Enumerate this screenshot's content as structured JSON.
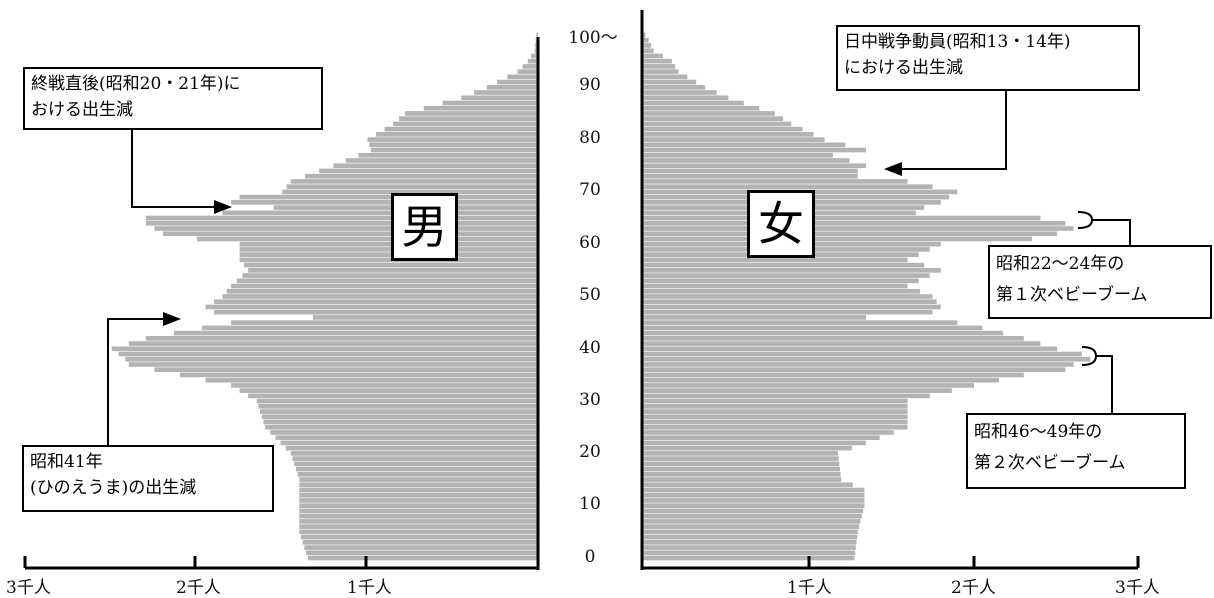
{
  "chart_data": {
    "type": "bar",
    "title": "",
    "age_tick_labels": [
      "0",
      "10",
      "20",
      "30",
      "40",
      "50",
      "60",
      "70",
      "80",
      "90",
      "100〜"
    ],
    "male_axis_labels": [
      "3千人",
      "2千人",
      "1千人"
    ],
    "female_axis_labels": [
      "1千人",
      "2千人",
      "3千人"
    ],
    "x_range_thousand_persons": [
      0,
      3
    ],
    "male_label": "男",
    "female_label": "女",
    "male_key_points": [
      [
        0,
        1.35
      ],
      [
        5,
        1.4
      ],
      [
        10,
        1.4
      ],
      [
        13,
        1.4
      ],
      [
        15,
        1.4
      ],
      [
        20,
        1.45
      ],
      [
        25,
        1.6
      ],
      [
        30,
        1.65
      ],
      [
        33,
        1.8
      ],
      [
        35,
        2.1
      ],
      [
        37,
        2.4
      ],
      [
        38,
        2.42
      ],
      [
        40,
        2.5
      ],
      [
        42,
        2.3
      ],
      [
        44,
        1.97
      ],
      [
        45,
        1.8
      ],
      [
        46,
        1.32
      ],
      [
        47,
        1.9
      ],
      [
        48,
        1.95
      ],
      [
        50,
        1.85
      ],
      [
        52,
        1.8
      ],
      [
        55,
        1.7
      ],
      [
        57,
        1.75
      ],
      [
        60,
        1.75
      ],
      [
        61,
        2.0
      ],
      [
        62,
        2.2
      ],
      [
        63,
        2.25
      ],
      [
        64,
        2.3
      ],
      [
        65,
        2.3
      ],
      [
        66,
        1.85
      ],
      [
        67,
        1.55
      ],
      [
        68,
        1.8
      ],
      [
        69,
        1.75
      ],
      [
        70,
        1.5
      ],
      [
        72,
        1.45
      ],
      [
        75,
        1.2
      ],
      [
        78,
        0.98
      ],
      [
        80,
        1.0
      ],
      [
        83,
        0.85
      ],
      [
        85,
        0.78
      ],
      [
        88,
        0.45
      ],
      [
        90,
        0.3
      ],
      [
        93,
        0.12
      ],
      [
        95,
        0.06
      ],
      [
        97,
        0.02
      ],
      [
        100,
        0.01
      ]
    ],
    "female_key_points": [
      [
        0,
        1.28
      ],
      [
        5,
        1.3
      ],
      [
        10,
        1.34
      ],
      [
        13,
        1.34
      ],
      [
        15,
        1.2
      ],
      [
        20,
        1.18
      ],
      [
        25,
        1.6
      ],
      [
        30,
        1.6
      ],
      [
        33,
        2.0
      ],
      [
        35,
        2.3
      ],
      [
        36,
        2.55
      ],
      [
        37,
        2.6
      ],
      [
        38,
        2.7
      ],
      [
        39,
        2.65
      ],
      [
        40,
        2.5
      ],
      [
        42,
        2.3
      ],
      [
        44,
        2.05
      ],
      [
        45,
        1.9
      ],
      [
        46,
        1.35
      ],
      [
        47,
        1.75
      ],
      [
        48,
        1.8
      ],
      [
        50,
        1.75
      ],
      [
        52,
        1.6
      ],
      [
        55,
        1.8
      ],
      [
        57,
        1.6
      ],
      [
        60,
        1.8
      ],
      [
        61,
        2.35
      ],
      [
        62,
        2.5
      ],
      [
        63,
        2.6
      ],
      [
        64,
        2.55
      ],
      [
        65,
        2.4
      ],
      [
        66,
        1.65
      ],
      [
        67,
        1.7
      ],
      [
        68,
        1.8
      ],
      [
        70,
        1.9
      ],
      [
        72,
        1.6
      ],
      [
        73,
        1.3
      ],
      [
        74,
        1.3
      ],
      [
        75,
        1.35
      ],
      [
        77,
        1.15
      ],
      [
        78,
        1.35
      ],
      [
        80,
        1.1
      ],
      [
        83,
        0.9
      ],
      [
        85,
        0.8
      ],
      [
        88,
        0.52
      ],
      [
        90,
        0.38
      ],
      [
        93,
        0.22
      ],
      [
        95,
        0.18
      ],
      [
        97,
        0.07
      ],
      [
        99,
        0.04
      ],
      [
        100,
        0.02
      ]
    ]
  },
  "labels": {
    "male_box": "男",
    "female_box": "女"
  },
  "annotations": {
    "postwar": [
      "終戦直後(昭和20・21年)に",
      "おける出生減"
    ],
    "hinoeuma": [
      "昭和41年",
      "(ひのえうま)の出生減"
    ],
    "wartime": [
      "日中戦争動員(昭和13・14年)",
      "における出生減"
    ],
    "boom1": [
      "昭和22〜24年の",
      "第１次ベビーブーム"
    ],
    "boom2": [
      "昭和46〜49年の",
      "第２次ベビーブーム"
    ]
  }
}
